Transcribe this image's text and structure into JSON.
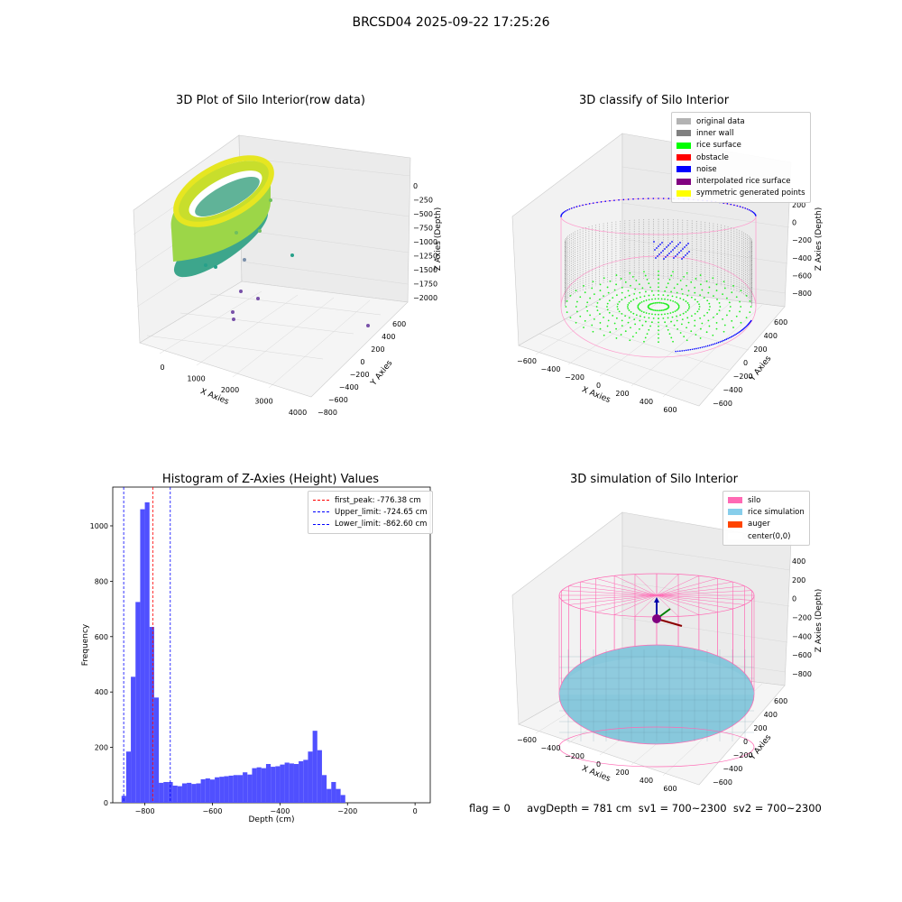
{
  "suptitle": "BRCSD04 2025-09-22 17:25:26",
  "panels": {
    "raw": {
      "title": "3D Plot of Silo Interior(row data)",
      "x_label": "X Axies",
      "y_label": "Y Axies",
      "z_label": "Z Axies (Depth)",
      "x_ticks": [
        "0",
        "1000",
        "2000",
        "3000",
        "4000"
      ],
      "y_ticks": [
        "−800",
        "−600",
        "−400",
        "−200",
        "0",
        "200",
        "400",
        "600"
      ],
      "z_ticks": [
        "0",
        "−250",
        "−500",
        "−750",
        "−1000",
        "−1250",
        "−1500",
        "−1750",
        "−2000"
      ]
    },
    "classify": {
      "title": "3D classify of Silo Interior",
      "x_label": "X Axies",
      "y_label": "Y Axies",
      "z_label": "Z Axies (Depth)",
      "x_ticks": [
        "−600",
        "−400",
        "−200",
        "0",
        "200",
        "400",
        "600"
      ],
      "y_ticks": [
        "−600",
        "−400",
        "−200",
        "0",
        "200",
        "400",
        "600"
      ],
      "z_ticks": [
        "200",
        "0",
        "−200",
        "−400",
        "−600",
        "−800"
      ],
      "legend": [
        {
          "label": "original data",
          "color": "#b3b3b3"
        },
        {
          "label": "inner wall",
          "color": "#808080"
        },
        {
          "label": "rice surface",
          "color": "#00ff00"
        },
        {
          "label": "obstacle",
          "color": "#ff0000"
        },
        {
          "label": "noise",
          "color": "#0000ff"
        },
        {
          "label": "interpolated rice surface",
          "color": "#800080"
        },
        {
          "label": "symmetric generated points",
          "color": "#ffff00"
        }
      ]
    },
    "simulation": {
      "title": "3D simulation of Silo Interior",
      "x_label": "X Axies",
      "y_label": "Y Axies",
      "z_label": "Z Axies (Depth)",
      "x_ticks": [
        "−600",
        "−400",
        "−200",
        "0",
        "200",
        "400",
        "600"
      ],
      "y_ticks": [
        "−600",
        "−400",
        "−200",
        "0",
        "200",
        "400",
        "600"
      ],
      "z_ticks": [
        "400",
        "200",
        "0",
        "−200",
        "−400",
        "−600",
        "−800"
      ],
      "legend": [
        {
          "label": "silo",
          "color": "#ff69b4"
        },
        {
          "label": "rice simulation",
          "color": "#87ceeb"
        },
        {
          "label": "auger",
          "color": "#ff4500"
        },
        {
          "label": "center(0,0)",
          "color": "#ffffff"
        }
      ]
    }
  },
  "footer": "flag = 0     avgDepth = 781 cm  sv1 = 700~2300  sv2 = 700~2300",
  "chart_data": {
    "type": "bar",
    "title": "Histogram of Z-Axies (Height) Values",
    "xlabel": "Depth (cm)",
    "ylabel": "Frequency",
    "xlim": [
      -895,
      45
    ],
    "ylim": [
      0,
      1140
    ],
    "x_ticks": [
      -800,
      -600,
      -400,
      -200,
      0
    ],
    "y_ticks": [
      0,
      200,
      400,
      600,
      800,
      1000
    ],
    "bin_width": 13.8,
    "bin_start": -869,
    "values": [
      25,
      185,
      455,
      725,
      1060,
      1085,
      635,
      380,
      72,
      75,
      75,
      62,
      60,
      70,
      72,
      68,
      70,
      85,
      88,
      84,
      92,
      94,
      96,
      98,
      100,
      100,
      110,
      102,
      125,
      128,
      125,
      140,
      130,
      132,
      138,
      145,
      142,
      140,
      150,
      155,
      185,
      260,
      190,
      100,
      50,
      75,
      50,
      28
    ],
    "lines": [
      {
        "label": "first_peak: -776.38 cm",
        "x": -776.38,
        "color": "#ff0000"
      },
      {
        "label": "Upper_limit: -724.65 cm",
        "x": -724.65,
        "color": "#0000ff"
      },
      {
        "label": "Lower_limit: -862.60 cm",
        "x": -862.6,
        "color": "#0000ff"
      }
    ],
    "bar_color": "#5050ff"
  }
}
